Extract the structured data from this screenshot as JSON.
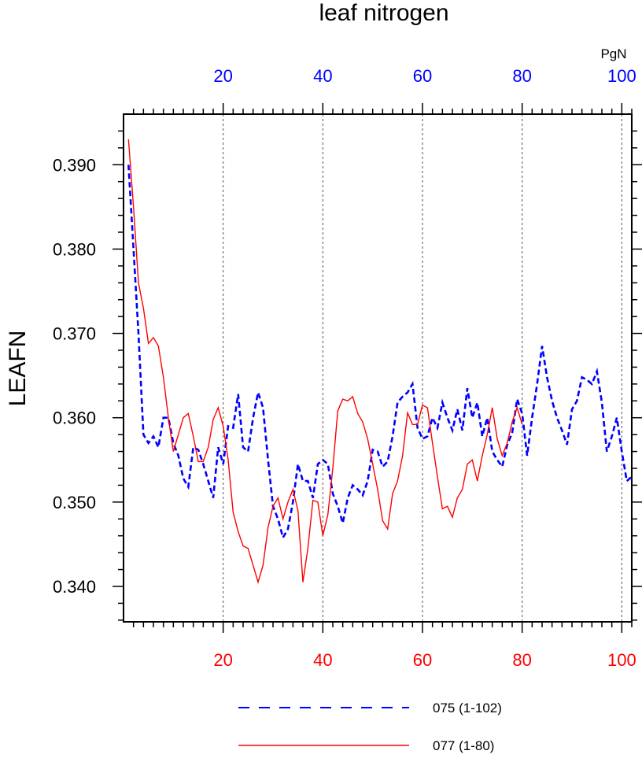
{
  "chart_data": {
    "type": "line",
    "title": "leaf nitrogen",
    "ylabel": "LEAFN",
    "top_unit": "PgN",
    "xlim": [
      0,
      102
    ],
    "ylim": [
      0.3358,
      0.396
    ],
    "x_ticks": [
      20,
      40,
      60,
      80,
      100
    ],
    "x_tick_labels": [
      "20",
      "40",
      "60",
      "80",
      "100"
    ],
    "y_ticks": [
      0.34,
      0.35,
      0.36,
      0.37,
      0.38,
      0.39
    ],
    "y_tick_labels": [
      "0.340",
      "0.350",
      "0.360",
      "0.370",
      "0.380",
      "0.390"
    ],
    "top_axis_color": "#0000ff",
    "bottom_axis_color": "#ff0000",
    "grid": "vertical-dotted",
    "legend_position": "bottom",
    "series": [
      {
        "name": "075 (1-102)",
        "color": "#0000ff",
        "style": "dashed",
        "x_start": 1,
        "values": [
          0.39,
          0.38,
          0.37,
          0.358,
          0.357,
          0.3578,
          0.3565,
          0.36,
          0.36,
          0.357,
          0.3555,
          0.3528,
          0.3518,
          0.3565,
          0.3562,
          0.3545,
          0.3525,
          0.3505,
          0.3565,
          0.3545,
          0.359,
          0.3588,
          0.3628,
          0.3565,
          0.356,
          0.36,
          0.363,
          0.3612,
          0.355,
          0.3495,
          0.348,
          0.3458,
          0.3468,
          0.35,
          0.3545,
          0.3525,
          0.3525,
          0.3505,
          0.3545,
          0.355,
          0.3545,
          0.351,
          0.3495,
          0.3475,
          0.3505,
          0.352,
          0.3515,
          0.3508,
          0.3525,
          0.3562,
          0.356,
          0.3542,
          0.3548,
          0.3578,
          0.3618,
          0.3625,
          0.363,
          0.364,
          0.3588,
          0.3575,
          0.3578,
          0.36,
          0.3588,
          0.3618,
          0.36,
          0.3585,
          0.361,
          0.3585,
          0.3635,
          0.36,
          0.3618,
          0.3578,
          0.36,
          0.356,
          0.355,
          0.3542,
          0.3568,
          0.3582,
          0.3622,
          0.3605,
          0.3555,
          0.36,
          0.364,
          0.3685,
          0.3648,
          0.362,
          0.36,
          0.3585,
          0.3568,
          0.361,
          0.362,
          0.3648,
          0.3645,
          0.364,
          0.3655,
          0.3618,
          0.356,
          0.3578,
          0.36,
          0.356,
          0.3525,
          0.353
        ]
      },
      {
        "name": "077 (1-80)",
        "color": "#ff0000",
        "style": "solid",
        "x_start": 1,
        "values": [
          0.393,
          0.385,
          0.376,
          0.373,
          0.3688,
          0.3695,
          0.3685,
          0.3648,
          0.36,
          0.356,
          0.358,
          0.36,
          0.3605,
          0.3578,
          0.3548,
          0.3548,
          0.3565,
          0.3598,
          0.3612,
          0.359,
          0.355,
          0.3488,
          0.3465,
          0.3448,
          0.3445,
          0.3425,
          0.3405,
          0.3425,
          0.347,
          0.3495,
          0.3505,
          0.348,
          0.35,
          0.3515,
          0.349,
          0.3405,
          0.3445,
          0.3502,
          0.35,
          0.346,
          0.3485,
          0.354,
          0.3608,
          0.3622,
          0.362,
          0.3625,
          0.3605,
          0.3595,
          0.3575,
          0.3545,
          0.3515,
          0.3478,
          0.3468,
          0.351,
          0.3525,
          0.3555,
          0.3606,
          0.3592,
          0.3592,
          0.3615,
          0.3612,
          0.357,
          0.353,
          0.3492,
          0.3495,
          0.3482,
          0.3505,
          0.3515,
          0.3545,
          0.355,
          0.3525,
          0.3555,
          0.358,
          0.3612,
          0.3575,
          0.3555,
          0.357,
          0.3595,
          0.3612,
          0.3592
        ]
      }
    ]
  }
}
